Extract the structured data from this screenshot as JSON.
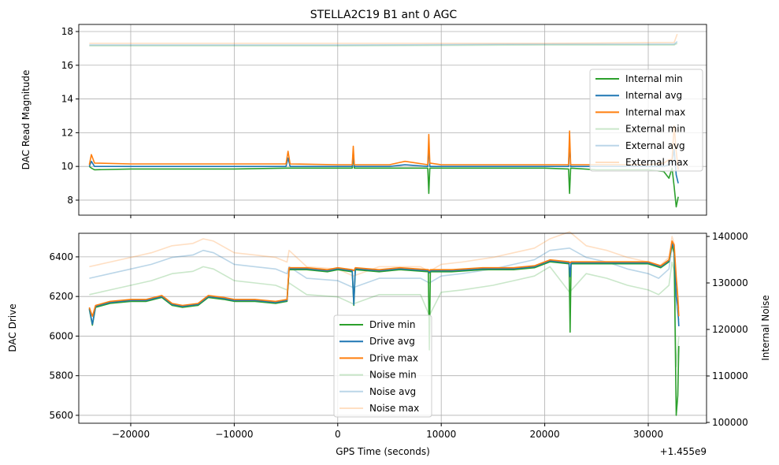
{
  "chart_data": [
    {
      "type": "line",
      "title": "STELLA2C19 B1 ant 0 AGC",
      "xlabel": "",
      "ylabel": "DAC Read Magnitude",
      "xlim": [
        -25020,
        35630
      ],
      "ylim": [
        7.11,
        18.42
      ],
      "yticks": [
        "8",
        "10",
        "12",
        "14",
        "16",
        "18"
      ],
      "ytick_values": [
        8,
        10,
        12,
        14,
        16,
        18
      ],
      "xtick_values": [
        -20000,
        -10000,
        0,
        10000,
        20000,
        30000
      ],
      "grid": true,
      "legend_placement": "center-right",
      "x": [
        -24000,
        -23800,
        -23500,
        -20000,
        -15000,
        -10000,
        -5000,
        -4800,
        -4600,
        0,
        1400,
        1500,
        1600,
        5000,
        6500,
        8700,
        8800,
        8900,
        10000,
        15000,
        20000,
        22300,
        22400,
        22500,
        25000,
        30000,
        31500,
        32000,
        32300,
        32500,
        32700,
        32900
      ],
      "series": [
        {
          "name": "Internal min",
          "color": "#2ca02c",
          "alpha": 1,
          "values": [
            10.0,
            9.9,
            9.8,
            9.85,
            9.85,
            9.85,
            9.9,
            9.9,
            9.9,
            9.9,
            9.9,
            10.8,
            9.9,
            9.9,
            9.9,
            9.9,
            8.4,
            9.9,
            9.9,
            9.9,
            9.9,
            9.85,
            8.4,
            9.9,
            9.8,
            9.8,
            9.7,
            9.3,
            9.9,
            8.8,
            7.6,
            8.2
          ]
        },
        {
          "name": "Internal avg",
          "color": "#1f77b4",
          "alpha": 1,
          "values": [
            10.0,
            10.3,
            10.0,
            10.0,
            10.0,
            10.0,
            10.0,
            10.5,
            10.0,
            10.0,
            10.0,
            10.9,
            10.0,
            10.0,
            10.1,
            10.0,
            11.3,
            10.0,
            10.0,
            10.0,
            10.0,
            10.0,
            11.5,
            10.0,
            10.0,
            10.0,
            10.0,
            10.1,
            10.3,
            11.0,
            9.5,
            9.0
          ]
        },
        {
          "name": "Internal max",
          "color": "#ff7f0e",
          "alpha": 1,
          "values": [
            10.1,
            10.7,
            10.2,
            10.15,
            10.15,
            10.15,
            10.15,
            10.9,
            10.15,
            10.1,
            10.1,
            11.2,
            10.1,
            10.1,
            10.3,
            10.1,
            11.9,
            10.2,
            10.1,
            10.1,
            10.1,
            10.1,
            12.1,
            10.1,
            10.1,
            10.1,
            10.2,
            10.4,
            10.4,
            12.4,
            10.9,
            9.8
          ]
        }
      ],
      "series_external": {
        "x": [
          -24000,
          0,
          20000,
          32500,
          32800
        ],
        "series": [
          {
            "name": "External min",
            "color": "#2ca02c",
            "alpha": 0.25,
            "values": [
              17.15,
              17.15,
              17.2,
              17.2,
              17.3
            ]
          },
          {
            "name": "External avg",
            "color": "#1f77b4",
            "alpha": 0.3,
            "values": [
              17.2,
              17.2,
              17.25,
              17.25,
              17.4
            ]
          },
          {
            "name": "External max",
            "color": "#ff7f0e",
            "alpha": 0.25,
            "values": [
              17.3,
              17.3,
              17.3,
              17.35,
              17.85
            ]
          }
        ]
      }
    },
    {
      "type": "line",
      "xlabel": "GPS Time (seconds)",
      "x_offset_label": "+1.455e9",
      "ylabel": "DAC Drive",
      "y2label": "Internal Noise",
      "xlim": [
        -25020,
        35630
      ],
      "ylim": [
        5560,
        6519
      ],
      "y2lim": [
        99830,
        140680
      ],
      "xticks": [
        "−20000",
        "−10000",
        "0",
        "10000",
        "20000",
        "30000"
      ],
      "xtick_values": [
        -20000,
        -10000,
        0,
        10000,
        20000,
        30000
      ],
      "yticks": [
        "5600",
        "5800",
        "6000",
        "6200",
        "6400"
      ],
      "ytick_values": [
        5600,
        5800,
        6000,
        6200,
        6400
      ],
      "y2ticks": [
        "100000",
        "110000",
        "120000",
        "130000",
        "140000"
      ],
      "y2tick_values": [
        100000,
        110000,
        120000,
        130000,
        140000
      ],
      "grid": true,
      "legend_placement": "lower-center",
      "x": [
        -24000,
        -23700,
        -23400,
        -22000,
        -20000,
        -18500,
        -17000,
        -16000,
        -15000,
        -13500,
        -12500,
        -11000,
        -10000,
        -8000,
        -6000,
        -4900,
        -4700,
        -3000,
        -1000,
        0,
        1400,
        1550,
        1700,
        4000,
        6000,
        8750,
        8850,
        8950,
        11000,
        14000,
        17000,
        19000,
        20500,
        22350,
        22450,
        22550,
        26000,
        30000,
        31200,
        32000,
        32300,
        32500,
        32700,
        32850,
        32950
      ],
      "series": [
        {
          "name": "Drive min",
          "color": "#2ca02c",
          "alpha": 1,
          "values": [
            6135,
            6055,
            6145,
            6165,
            6175,
            6175,
            6195,
            6155,
            6145,
            6155,
            6195,
            6185,
            6175,
            6175,
            6165,
            6175,
            6335,
            6335,
            6325,
            6335,
            6325,
            6155,
            6335,
            6325,
            6335,
            6325,
            5930,
            6325,
            6325,
            6335,
            6335,
            6345,
            6375,
            6365,
            6020,
            6365,
            6365,
            6365,
            6345,
            6375,
            6460,
            6420,
            5600,
            5700,
            5950
          ]
        },
        {
          "name": "Drive avg",
          "color": "#1f77b4",
          "alpha": 1,
          "values": [
            6140,
            6060,
            6150,
            6170,
            6180,
            6180,
            6200,
            6160,
            6150,
            6160,
            6200,
            6190,
            6180,
            6180,
            6170,
            6180,
            6340,
            6340,
            6330,
            6340,
            6330,
            6160,
            6340,
            6330,
            6340,
            6330,
            6320,
            6330,
            6330,
            6340,
            6340,
            6350,
            6380,
            6370,
            6300,
            6370,
            6370,
            6370,
            6350,
            6380,
            6470,
            6440,
            6200,
            6150,
            6050
          ]
        },
        {
          "name": "Drive max",
          "color": "#ff7f0e",
          "alpha": 1,
          "values": [
            6145,
            6100,
            6155,
            6175,
            6185,
            6185,
            6205,
            6165,
            6155,
            6165,
            6205,
            6195,
            6185,
            6185,
            6175,
            6185,
            6345,
            6345,
            6335,
            6345,
            6335,
            6330,
            6345,
            6335,
            6345,
            6335,
            6330,
            6335,
            6335,
            6345,
            6345,
            6355,
            6385,
            6375,
            6370,
            6375,
            6375,
            6375,
            6355,
            6385,
            6480,
            6460,
            6300,
            6200,
            6100
          ]
        }
      ],
      "series_noise": {
        "axis": "right",
        "x": [
          -24000,
          -22000,
          -20000,
          -18000,
          -16000,
          -14000,
          -13000,
          -12000,
          -10000,
          -8000,
          -6000,
          -4900,
          -4700,
          -3000,
          0,
          1500,
          4000,
          6000,
          8000,
          8850,
          10000,
          12000,
          15000,
          17000,
          19000,
          20500,
          22400,
          24000,
          26000,
          28000,
          30000,
          31000,
          32000,
          32300,
          32500,
          32700,
          32950
        ],
        "series": [
          {
            "name": "Noise min",
            "color": "#2ca02c",
            "alpha": 0.25,
            "values": [
              127500,
              128500,
              129500,
              130500,
              132000,
              132500,
              133500,
              133000,
              130500,
              130000,
              129500,
              128500,
              130000,
              127500,
              127000,
              125500,
              127500,
              127500,
              127500,
              123000,
              128000,
              128500,
              129500,
              130500,
              131500,
              133500,
              128000,
              132000,
              131000,
              129500,
              128500,
              127500,
              129500,
              134500,
              132500,
              112000,
              118500
            ]
          },
          {
            "name": "Noise avg",
            "color": "#1f77b4",
            "alpha": 0.3,
            "values": [
              131000,
              132000,
              133000,
              134000,
              135500,
              136000,
              137000,
              136500,
              134000,
              133500,
              133000,
              132000,
              133500,
              131000,
              130500,
              129000,
              131000,
              131000,
              131000,
              130000,
              131500,
              132000,
              133000,
              134000,
              135000,
              137000,
              137500,
              135500,
              134500,
              133000,
              132000,
              131000,
              133000,
              138000,
              136000,
              125000,
              122000
            ]
          },
          {
            "name": "Noise max",
            "color": "#ff7f0e",
            "alpha": 0.25,
            "values": [
              133500,
              134500,
              135500,
              136500,
              138000,
              138500,
              139500,
              139000,
              136500,
              136000,
              135500,
              134500,
              137000,
              133500,
              133000,
              131500,
              133500,
              133500,
              133500,
              132500,
              134000,
              134500,
              135500,
              136500,
              137500,
              139500,
              141000,
              138000,
              137000,
              135500,
              134500,
              133500,
              135500,
              140000,
              138500,
              130000,
              124500
            ]
          }
        ]
      }
    }
  ]
}
